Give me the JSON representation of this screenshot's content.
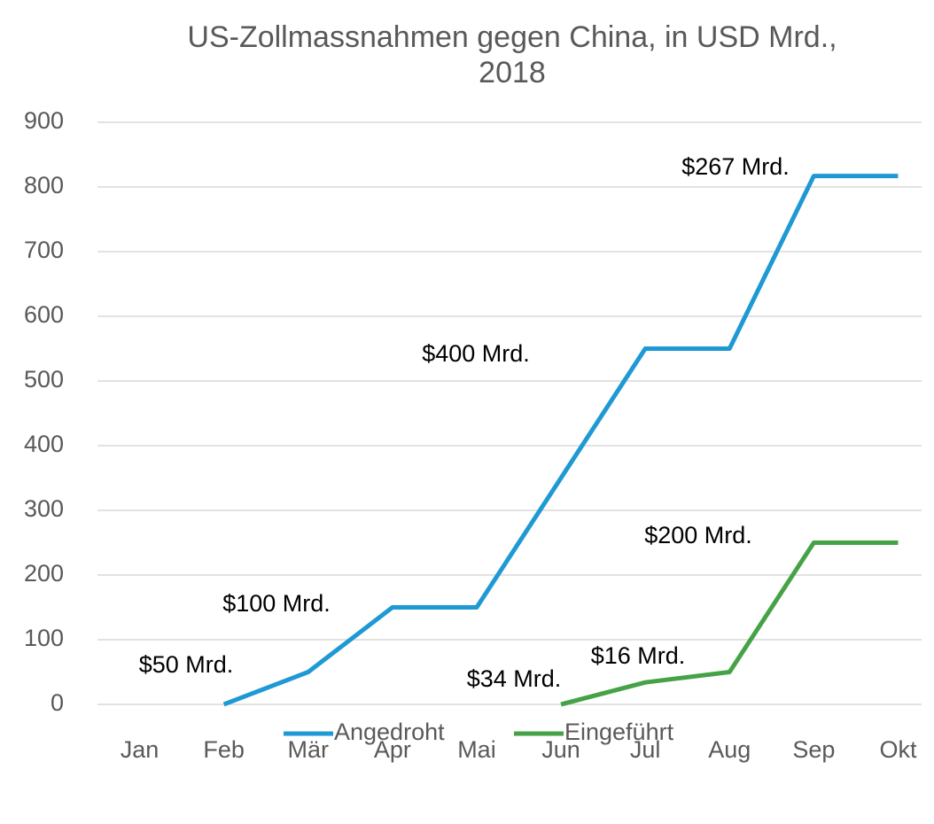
{
  "chart_data": {
    "type": "line",
    "title": "US-Zollmassnahmen gegen China, in USD Mrd., 2018",
    "categories": [
      "Jan",
      "Feb",
      "Mär",
      "Apr",
      "Mai",
      "Jun",
      "Jul",
      "Aug",
      "Sep",
      "Okt"
    ],
    "series": [
      {
        "name": "Angedroht",
        "color": "#1f99d4",
        "values": [
          null,
          0,
          50,
          150,
          150,
          350,
          550,
          550,
          817,
          817
        ]
      },
      {
        "name": "Eingeführt",
        "color": "#46a246",
        "values": [
          null,
          null,
          null,
          null,
          null,
          0,
          34,
          50,
          250,
          250
        ]
      }
    ],
    "annotations": [
      "$50 Mrd.",
      "$100 Mrd.",
      "$400 Mrd.",
      "$267 Mrd.",
      "$34 Mrd.",
      "$16 Mrd.",
      "$200 Mrd."
    ],
    "ylim": [
      0,
      900
    ],
    "yticks": [
      0,
      100,
      200,
      300,
      400,
      500,
      600,
      700,
      800,
      900
    ],
    "grid": true,
    "legend": "bottom"
  }
}
